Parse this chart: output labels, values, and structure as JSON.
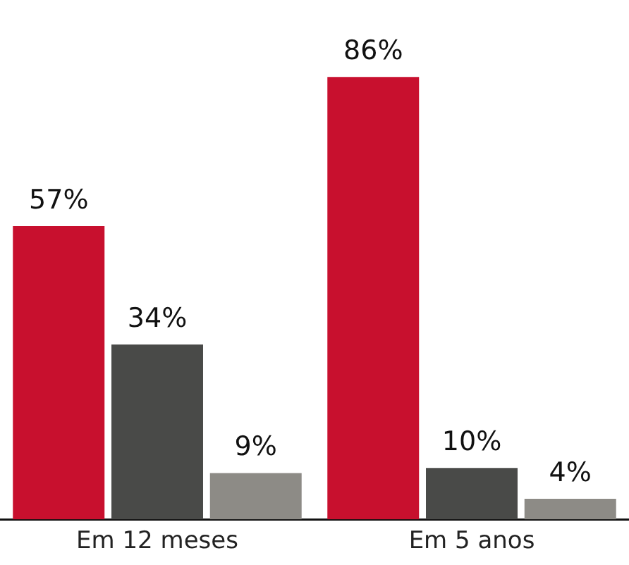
{
  "chart_data": {
    "type": "bar",
    "categories": [
      "Em 12 meses",
      "Em 5 anos"
    ],
    "series": [
      {
        "color": "#c8102e",
        "values": [
          57,
          86
        ],
        "value_labels": [
          "57%",
          "86%"
        ]
      },
      {
        "color": "#494a48",
        "values": [
          34,
          10
        ],
        "value_labels": [
          "34%",
          "10%"
        ]
      },
      {
        "color": "#8d8b86",
        "values": [
          9,
          4
        ],
        "value_labels": [
          "9%",
          "4%"
        ]
      }
    ],
    "tick_labels": "x",
    "grid": false,
    "legend": false
  }
}
